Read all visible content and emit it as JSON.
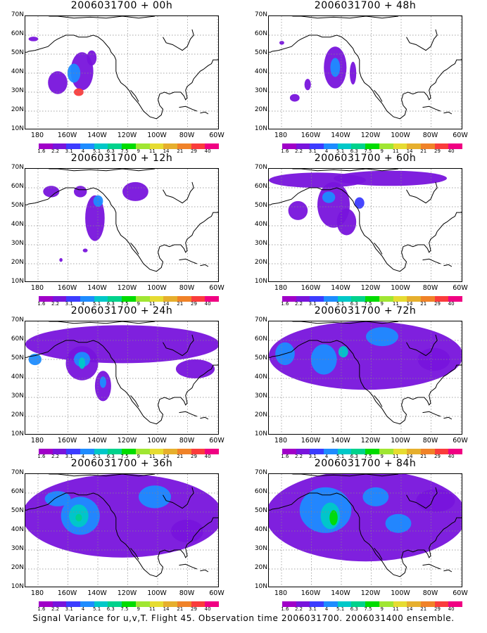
{
  "panels": [
    {
      "title": "2006031700 + 00h",
      "level": 0
    },
    {
      "title": "2006031700 + 48h",
      "level": 4
    },
    {
      "title": "2006031700 + 12h",
      "level": 1
    },
    {
      "title": "2006031700 + 60h",
      "level": 5
    },
    {
      "title": "2006031700 + 24h",
      "level": 2
    },
    {
      "title": "2006031700 + 72h",
      "level": 6
    },
    {
      "title": "2006031700 + 36h",
      "level": 3
    },
    {
      "title": "2006031700 + 84h",
      "level": 7
    }
  ],
  "lat_labels": [
    "70N",
    "60N",
    "50N",
    "40N",
    "30N",
    "20N",
    "10N"
  ],
  "lon_labels": [
    "180",
    "160W",
    "140W",
    "120W",
    "100W",
    "80W",
    "60W"
  ],
  "colorbar": {
    "colors": [
      "#a000c8",
      "#7814dc",
      "#3c3cff",
      "#1e8cff",
      "#00c8c8",
      "#00d28c",
      "#00dc00",
      "#a0e632",
      "#e6dc32",
      "#e6af2d",
      "#f08228",
      "#fa3c3c",
      "#f00082"
    ],
    "tick_labels": [
      "1.6",
      "2.2",
      "3.1",
      "4",
      "5.1",
      "6.3",
      "7.5",
      "9",
      "11",
      "14",
      "21",
      "29",
      "40"
    ]
  },
  "caption": "Signal Variance for u,v,T. Flight 45. Observation time 2006031700. 2006031400 ensemble."
}
